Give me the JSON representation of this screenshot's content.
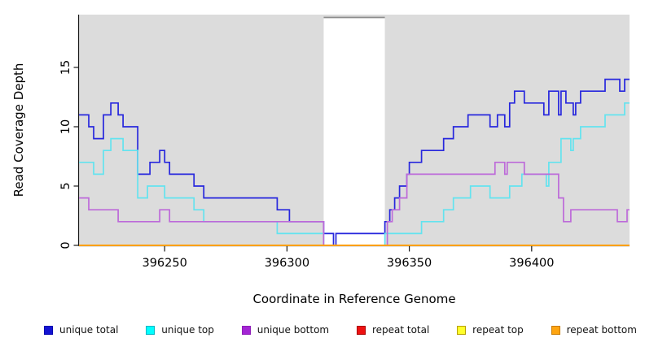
{
  "chart_data": {
    "type": "line",
    "subtype": "step",
    "title": "",
    "xlabel": "Coordinate in Reference Genome",
    "ylabel": "Read Coverage Depth",
    "xlim": [
      396215,
      396440
    ],
    "ylim": [
      0,
      19.45
    ],
    "x_ticks": [
      396250,
      396300,
      396350,
      396400
    ],
    "y_ticks": [
      0,
      5,
      10,
      15
    ],
    "grid": false,
    "plot_background": "#dcdcdc",
    "axis_color": "#1a1a1a",
    "legend_position": "bottom",
    "gap_region": {
      "x_start": 396315,
      "x_end": 396340,
      "fill": "#ffffff",
      "top_border_color": "#8c8c8c"
    },
    "series": [
      {
        "name": "unique total",
        "color": "#2727dd",
        "legend_fill": "#1313d2",
        "legend_border": "#0000b0",
        "points": [
          [
            396215,
            11
          ],
          [
            396219,
            10
          ],
          [
            396221,
            9
          ],
          [
            396225,
            11
          ],
          [
            396228,
            12
          ],
          [
            396231,
            11
          ],
          [
            396233,
            10
          ],
          [
            396239,
            6
          ],
          [
            396244,
            7
          ],
          [
            396248,
            8
          ],
          [
            396250,
            7
          ],
          [
            396252,
            6
          ],
          [
            396262,
            5
          ],
          [
            396266,
            4
          ],
          [
            396296,
            3
          ],
          [
            396301,
            2
          ],
          [
            396315,
            1
          ],
          [
            396319,
            0
          ],
          [
            396320,
            1
          ],
          [
            396340,
            2
          ],
          [
            396342,
            3
          ],
          [
            396344,
            4
          ],
          [
            396346,
            5
          ],
          [
            396349,
            6
          ],
          [
            396350,
            7
          ],
          [
            396355,
            8
          ],
          [
            396364,
            9
          ],
          [
            396368,
            10
          ],
          [
            396374,
            11
          ],
          [
            396383,
            10
          ],
          [
            396386,
            11
          ],
          [
            396389,
            10
          ],
          [
            396391,
            12
          ],
          [
            396393,
            13
          ],
          [
            396397,
            12
          ],
          [
            396405,
            11
          ],
          [
            396407,
            13
          ],
          [
            396411,
            11
          ],
          [
            396412,
            13
          ],
          [
            396414,
            12
          ],
          [
            396417,
            11
          ],
          [
            396418,
            12
          ],
          [
            396420,
            13
          ],
          [
            396430,
            14
          ],
          [
            396436,
            13
          ],
          [
            396438,
            14
          ],
          [
            396440,
            14
          ]
        ]
      },
      {
        "name": "unique top",
        "color": "#63e3ef",
        "legend_fill": "#00ffff",
        "legend_border": "#00b5c4",
        "points": [
          [
            396215,
            7
          ],
          [
            396221,
            6
          ],
          [
            396225,
            8
          ],
          [
            396228,
            9
          ],
          [
            396233,
            8
          ],
          [
            396239,
            4
          ],
          [
            396243,
            5
          ],
          [
            396250,
            4
          ],
          [
            396262,
            3
          ],
          [
            396266,
            2
          ],
          [
            396296,
            1
          ],
          [
            396315,
            0
          ],
          [
            396340,
            1
          ],
          [
            396355,
            2
          ],
          [
            396364,
            3
          ],
          [
            396368,
            4
          ],
          [
            396375,
            5
          ],
          [
            396383,
            4
          ],
          [
            396391,
            5
          ],
          [
            396396,
            6
          ],
          [
            396406,
            5
          ],
          [
            396407,
            7
          ],
          [
            396412,
            9
          ],
          [
            396416,
            8
          ],
          [
            396417,
            9
          ],
          [
            396420,
            10
          ],
          [
            396430,
            11
          ],
          [
            396438,
            12
          ],
          [
            396440,
            12
          ]
        ]
      },
      {
        "name": "unique bottom",
        "color": "#bd6ad9",
        "legend_fill": "#a325d4",
        "legend_border": "#8e1cb8",
        "points": [
          [
            396215,
            4
          ],
          [
            396219,
            3
          ],
          [
            396231,
            2
          ],
          [
            396248,
            3
          ],
          [
            396252,
            2
          ],
          [
            396315,
            0
          ],
          [
            396341,
            2
          ],
          [
            396343,
            3
          ],
          [
            396346,
            4
          ],
          [
            396349,
            6
          ],
          [
            396385,
            7
          ],
          [
            396389,
            6
          ],
          [
            396390,
            7
          ],
          [
            396397,
            6
          ],
          [
            396411,
            4
          ],
          [
            396413,
            2
          ],
          [
            396416,
            3
          ],
          [
            396435,
            2
          ],
          [
            396439,
            3
          ],
          [
            396440,
            3
          ]
        ]
      },
      {
        "name": "repeat total",
        "color": "#dd0000",
        "legend_fill": "#ee1111",
        "legend_border": "#aa0000",
        "points": [
          [
            396215,
            0
          ],
          [
            396440,
            0
          ]
        ]
      },
      {
        "name": "repeat top",
        "color": "#eeee00",
        "legend_fill": "#ffff2a",
        "legend_border": "#b8a100",
        "points": [
          [
            396215,
            0
          ],
          [
            396440,
            0
          ]
        ]
      },
      {
        "name": "repeat bottom",
        "color": "#ff9d0c",
        "legend_fill": "#ffa510",
        "legend_border": "#c97b00",
        "points": [
          [
            396215,
            0
          ],
          [
            396440,
            0
          ]
        ]
      }
    ]
  }
}
